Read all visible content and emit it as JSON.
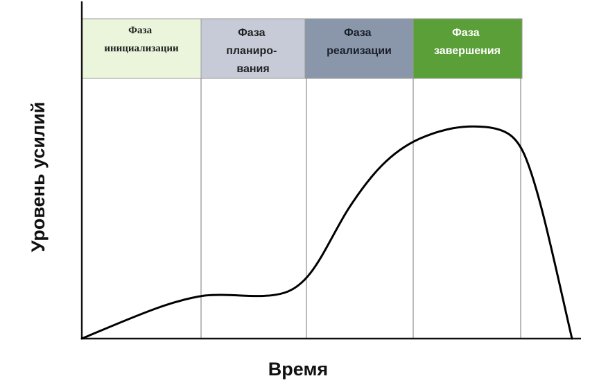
{
  "diagram": {
    "y_axis_label": "Уровень усилий",
    "x_axis_label": "Время",
    "phases": [
      {
        "label_lines": [
          "Фаза",
          "инициализации"
        ],
        "fill": "#eaf5dc",
        "text_color": "#222222"
      },
      {
        "label_lines": [
          "Фаза",
          "планиро-",
          "вания"
        ],
        "fill": "#c6cbd7",
        "text_color": "#222222"
      },
      {
        "label_lines": [
          "Фаза",
          "реализации"
        ],
        "fill": "#8a97ab",
        "text_color": "#1a1f2a"
      },
      {
        "label_lines": [
          "Фаза",
          "завершения"
        ],
        "fill": "#5a9f37",
        "text_color": "#ffffff"
      }
    ],
    "colors": {
      "axis": "#111111",
      "curve": "#000000",
      "divider": "#8c8c8c"
    }
  }
}
